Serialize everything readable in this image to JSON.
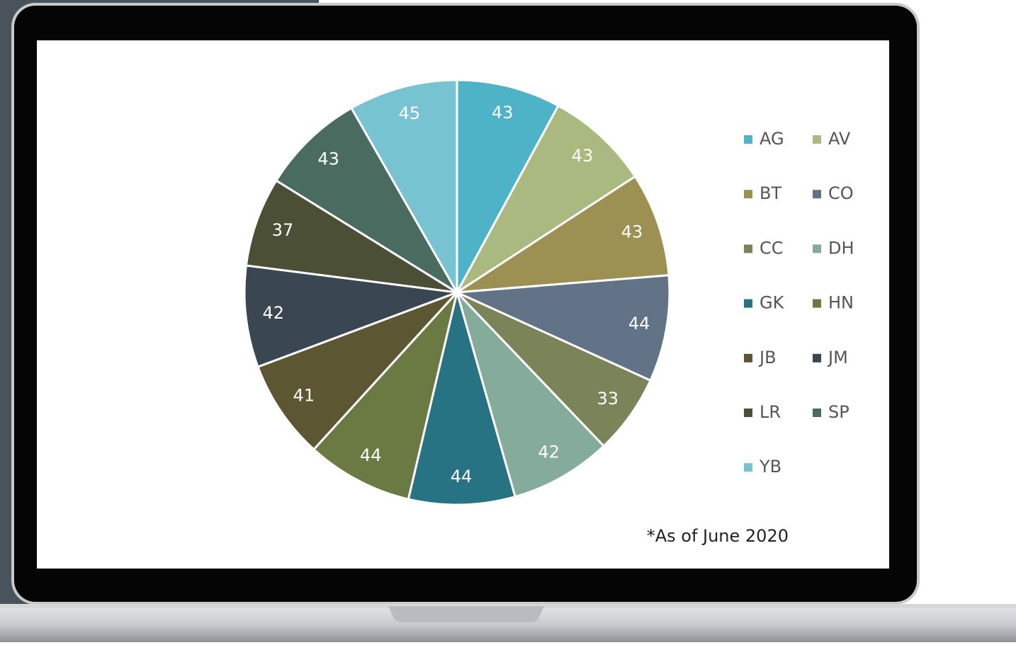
{
  "chart_data": {
    "type": "pie",
    "categories": [
      "AG",
      "AV",
      "BT",
      "CO",
      "CC",
      "DH",
      "GK",
      "HN",
      "JB",
      "JM",
      "LR",
      "SP",
      "YB"
    ],
    "values": [
      43,
      43,
      43,
      44,
      33,
      42,
      44,
      44,
      41,
      42,
      37,
      43,
      45
    ],
    "colors": [
      "#4fb3c8",
      "#a9b97f",
      "#9c9152",
      "#627387",
      "#7b8459",
      "#85ab9b",
      "#287383",
      "#6a7a42",
      "#5d5633",
      "#3b4653",
      "#4b4f35",
      "#4a6c60",
      "#78c3d1"
    ],
    "legend": "right",
    "annotation": "*As of June 2020"
  }
}
